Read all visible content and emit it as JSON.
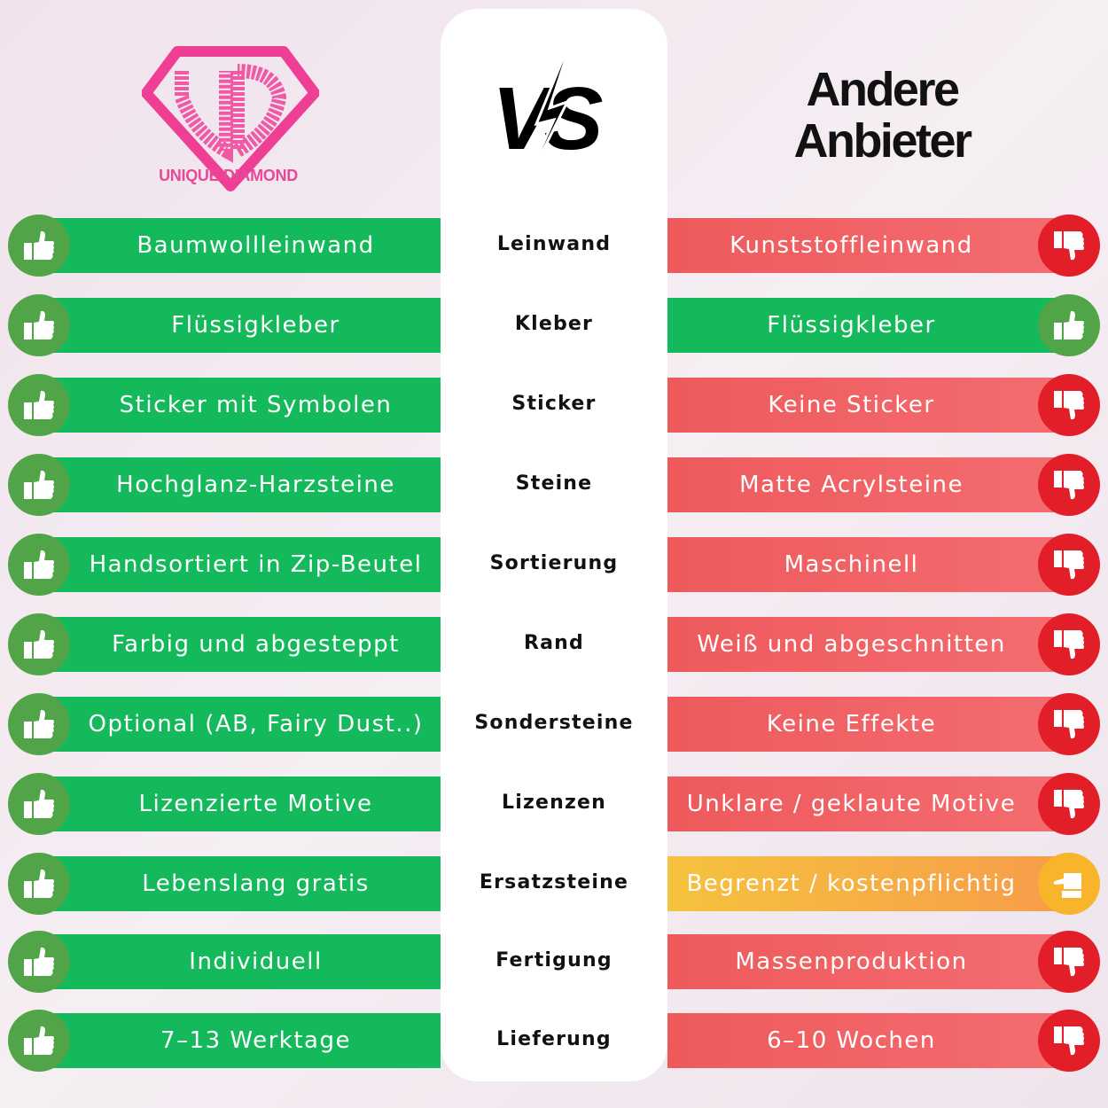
{
  "brand": {
    "name": "UNIQUE DIAMOND",
    "color": "#e8489a"
  },
  "vs_label": "VS",
  "competitor_title": "Andere Anbieter",
  "colors": {
    "good": "#13b95a",
    "bad": "#ee5a5c",
    "neutral": "#f5c23e",
    "good_icon": "#51a548",
    "bad_icon": "#e21f28",
    "neutral_icon": "#f8b52b"
  },
  "rows": [
    {
      "category": "Leinwand",
      "ours": "Baumwollleinwand",
      "theirs": "Kunststoffleinwand",
      "rating": "bad"
    },
    {
      "category": "Kleber",
      "ours": "Flüssigkleber",
      "theirs": "Flüssigkleber",
      "rating": "good"
    },
    {
      "category": "Sticker",
      "ours": "Sticker mit Symbolen",
      "theirs": "Keine Sticker",
      "rating": "bad"
    },
    {
      "category": "Steine",
      "ours": "Hochglanz-Harzsteine",
      "theirs": "Matte Acrylsteine",
      "rating": "bad"
    },
    {
      "category": "Sortierung",
      "ours": "Handsortiert in Zip-Beutel",
      "theirs": "Maschinell",
      "rating": "bad"
    },
    {
      "category": "Rand",
      "ours": "Farbig und abgesteppt",
      "theirs": "Weiß und abgeschnitten",
      "rating": "bad"
    },
    {
      "category": "Sondersteine",
      "ours": "Optional (AB, Fairy Dust..)",
      "theirs": "Keine Effekte",
      "rating": "bad"
    },
    {
      "category": "Lizenzen",
      "ours": "Lizenzierte Motive",
      "theirs": "Unklare / geklaute Motive",
      "rating": "bad"
    },
    {
      "category": "Ersatzsteine",
      "ours": "Lebenslang gratis",
      "theirs": "Begrenzt / kostenpflichtig",
      "rating": "neutral"
    },
    {
      "category": "Fertigung",
      "ours": "Individuell",
      "theirs": "Massenproduktion",
      "rating": "bad"
    },
    {
      "category": "Lieferung",
      "ours": "7–13 Werktage",
      "theirs": "6–10 Wochen",
      "rating": "bad"
    }
  ]
}
